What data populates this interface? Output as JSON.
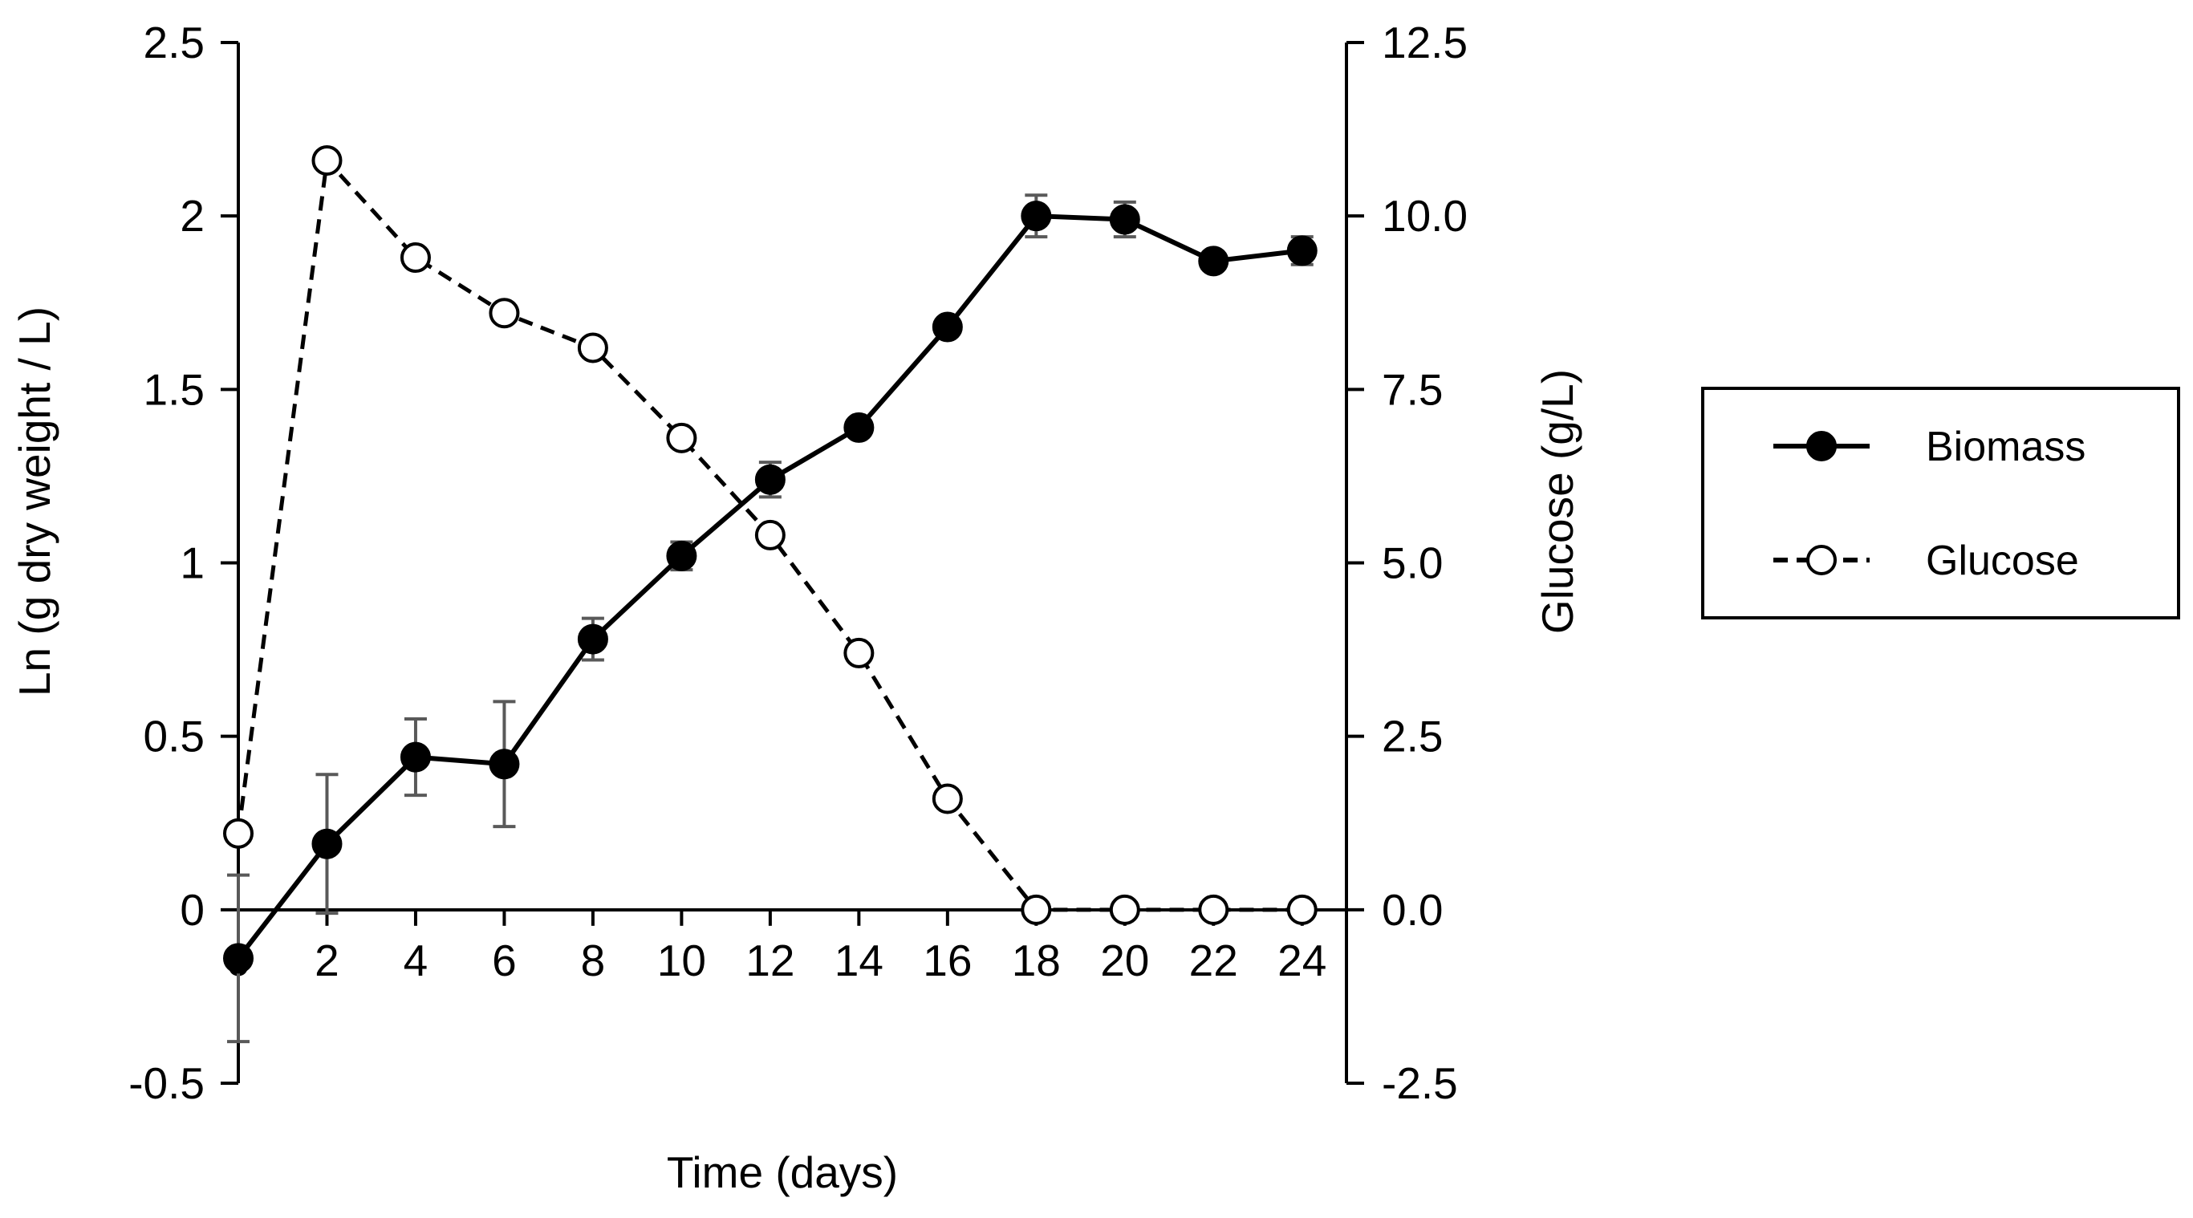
{
  "chart_data": {
    "type": "line",
    "title": "",
    "xlabel": "Time (days)",
    "ylabel": "Ln (g dry weight / L)",
    "y2label": "Glucose (g/L)",
    "xlim": [
      0,
      25
    ],
    "ylim": [
      -0.5,
      2.5
    ],
    "y2lim": [
      -2.5,
      12.5
    ],
    "x_ticks": [
      0,
      2,
      4,
      6,
      8,
      10,
      12,
      14,
      16,
      18,
      20,
      22,
      24
    ],
    "x_tick_labels": [
      "0",
      "2",
      "4",
      "6",
      "8",
      "10",
      "12",
      "14",
      "16",
      "18",
      "20",
      "22",
      "24"
    ],
    "y_ticks": [
      -0.5,
      0,
      0.5,
      1,
      1.5,
      2,
      2.5
    ],
    "y_tick_labels": [
      "-0.5",
      "0",
      "0.5",
      "1",
      "1.5",
      "2",
      "2.5"
    ],
    "y2_ticks": [
      -2.5,
      0,
      2.5,
      5,
      7.5,
      10,
      12.5
    ],
    "y2_tick_labels": [
      "-2.5",
      "0.0",
      "2.5",
      "5.0",
      "7.5",
      "10.0",
      "12.5"
    ],
    "legend_position": "right",
    "series": [
      {
        "name": "Biomass",
        "axis": "left",
        "marker": "filled-circle",
        "line": "solid",
        "x": [
          0,
          2,
          4,
          6,
          8,
          10,
          12,
          14,
          16,
          18,
          20,
          22,
          24
        ],
        "values": [
          -0.14,
          0.19,
          0.44,
          0.42,
          0.78,
          1.02,
          1.24,
          1.39,
          1.68,
          2.0,
          1.99,
          1.87,
          1.9
        ],
        "errors": [
          0.24,
          0.2,
          0.11,
          0.18,
          0.06,
          0.04,
          0.05,
          0.02,
          0.02,
          0.06,
          0.05,
          0.02,
          0.04
        ]
      },
      {
        "name": "Glucose",
        "axis": "right",
        "marker": "open-circle",
        "line": "dashed",
        "x": [
          0,
          2,
          4,
          6,
          8,
          10,
          12,
          14,
          16,
          18,
          20,
          22,
          24
        ],
        "values": [
          1.1,
          10.8,
          9.4,
          8.6,
          8.1,
          6.8,
          5.4,
          3.7,
          1.6,
          0.0,
          0.0,
          0.0,
          0.0
        ]
      }
    ]
  }
}
